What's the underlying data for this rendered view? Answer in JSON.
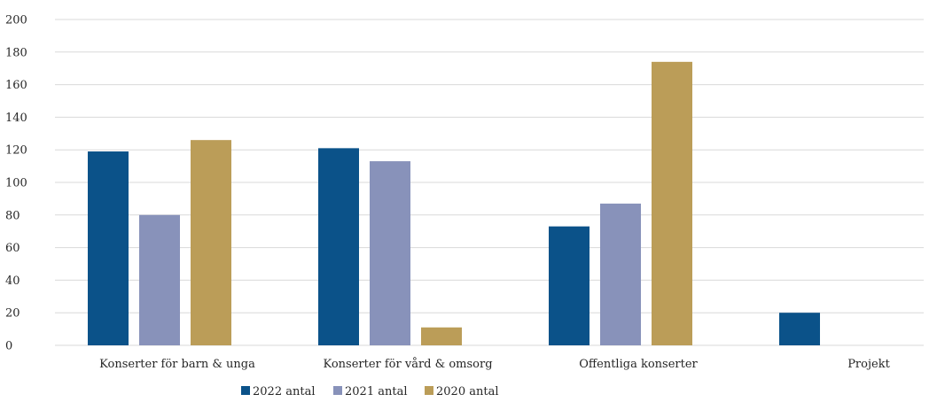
{
  "chart_data": {
    "type": "bar",
    "title": "",
    "xlabel": "",
    "ylabel": "",
    "ylim": [
      0,
      200
    ],
    "ytick_step": 20,
    "y_ticks": [
      "0",
      "20",
      "40",
      "60",
      "80",
      "100",
      "120",
      "140",
      "160",
      "180",
      "200"
    ],
    "grid": true,
    "legend_position": "bottom",
    "categories": [
      "Konserter för barn & unga",
      "Konserter för vård & omsorg",
      "Offentliga konserter",
      "Projekt"
    ],
    "series": [
      {
        "name": "2022 antal",
        "color": "#0b5289",
        "values": [
          119,
          121,
          73,
          20
        ]
      },
      {
        "name": "2021 antal",
        "color": "#8892ba",
        "values": [
          80,
          113,
          87,
          null
        ]
      },
      {
        "name": "2020 antal",
        "color": "#bb9d58",
        "values": [
          126,
          11,
          174,
          null
        ]
      }
    ]
  }
}
